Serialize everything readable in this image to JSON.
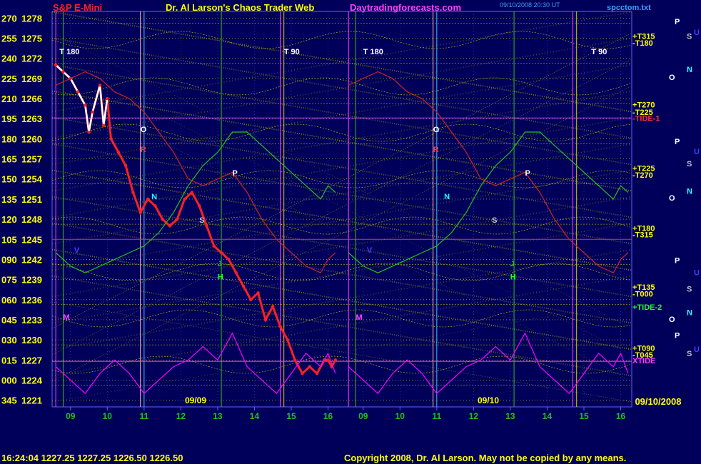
{
  "header": {
    "symbol": "S&P E-Mini",
    "title": "Dr. Al Larson's Chaos Trader Web",
    "site": "Daytradingforecasts.com",
    "stamp": "09/10/2008 20:30 UT",
    "file": "spcctom.txt"
  },
  "footer": {
    "quote": "16:24:04  1227.25  1227.25  1226.50  1226.50",
    "copyright": "Copyright 2008, Dr. Al Larson. May not be copied by any means."
  },
  "colors": {
    "background": "#00005a",
    "grid_yellow": "#d8d800",
    "price_white": "#ffffff",
    "price_red": "#ff2020",
    "green": "#20c020",
    "magenta": "#ff00ff",
    "accent_yellow": "#ffff00"
  },
  "chart_data": {
    "type": "line",
    "y_axis": {
      "range": [
        1220,
        1279
      ],
      "ticks": [
        {
          "price": "1278",
          "angle": "270"
        },
        {
          "price": "1275",
          "angle": "255"
        },
        {
          "price": "1272",
          "angle": "240"
        },
        {
          "price": "1269",
          "angle": "225"
        },
        {
          "price": "1266",
          "angle": "210"
        },
        {
          "price": "1263",
          "angle": "195"
        },
        {
          "price": "1260",
          "angle": "180"
        },
        {
          "price": "1257",
          "angle": "165"
        },
        {
          "price": "1254",
          "angle": "150"
        },
        {
          "price": "1251",
          "angle": "135"
        },
        {
          "price": "1248",
          "angle": "120"
        },
        {
          "price": "1245",
          "angle": "105"
        },
        {
          "price": "1242",
          "angle": "090"
        },
        {
          "price": "1239",
          "angle": "075"
        },
        {
          "price": "1236",
          "angle": "060"
        },
        {
          "price": "1233",
          "angle": "045"
        },
        {
          "price": "1230",
          "angle": "030"
        },
        {
          "price": "1227",
          "angle": "015"
        },
        {
          "price": "1224",
          "angle": "000"
        },
        {
          "price": "1221",
          "angle": "345"
        }
      ]
    },
    "x_axis": {
      "range": [
        8.5,
        16.3
      ],
      "days": [
        {
          "label": "09/09",
          "ticks": [
            "09",
            "10",
            "11",
            "12",
            "13",
            "14",
            "15",
            "16"
          ]
        },
        {
          "label": "09/10",
          "ticks": [
            "09",
            "10",
            "11",
            "12",
            "13",
            "14",
            "15",
            "16"
          ]
        }
      ],
      "date_label": "09/10/2008"
    },
    "overlays": {
      "top_markers": [
        "T 180",
        "T 90",
        "T 180",
        "T 90"
      ],
      "right_levels": [
        {
          "label": "+T315",
          "price": 1275.3
        },
        {
          "label": "-T180",
          "price": 1274.3
        },
        {
          "label": "+T270",
          "price": 1265.1
        },
        {
          "label": "-T225",
          "price": 1264.0
        },
        {
          "label": "-TIDE-1",
          "price": 1263.1
        },
        {
          "label": "+T225",
          "price": 1255.6
        },
        {
          "label": "-T270",
          "price": 1254.6
        },
        {
          "label": "+T180",
          "price": 1246.7
        },
        {
          "label": "-T315",
          "price": 1245.7
        },
        {
          "label": "+T135",
          "price": 1237.9
        },
        {
          "label": "-T000",
          "price": 1236.9
        },
        {
          "label": "+TIDE-2",
          "price": 1234.9
        },
        {
          "label": "+T090",
          "price": 1228.8
        },
        {
          "label": "-T045",
          "price": 1227.8
        },
        {
          "label": "XTIDE",
          "price": 1226.9
        }
      ],
      "planet_column": [
        {
          "glyph": "P",
          "price": 1277.5
        },
        {
          "glyph": "S",
          "price": 1275.3
        },
        {
          "glyph": "U",
          "price": 1275.9
        },
        {
          "glyph": "N",
          "price": 1270.4
        },
        {
          "glyph": "O",
          "price": 1269.2
        },
        {
          "glyph": "U",
          "price": 1258.1
        },
        {
          "glyph": "S",
          "price": 1256.3
        },
        {
          "glyph": "P",
          "price": 1259.6
        },
        {
          "glyph": "N",
          "price": 1252.2
        },
        {
          "glyph": "O",
          "price": 1251.2
        },
        {
          "glyph": "P",
          "price": 1241.9
        },
        {
          "glyph": "S",
          "price": 1237.6
        },
        {
          "glyph": "U",
          "price": 1240.1
        },
        {
          "glyph": "N",
          "price": 1234.1
        },
        {
          "glyph": "O",
          "price": 1233.1
        },
        {
          "glyph": "P",
          "price": 1230.7
        },
        {
          "glyph": "U",
          "price": 1228.6
        },
        {
          "glyph": "S",
          "price": 1228.0
        }
      ],
      "inline_marks": [
        "O",
        "P",
        "N",
        "S",
        "H",
        "R",
        "J",
        "M",
        "V"
      ]
    },
    "series": [
      {
        "kind": "price",
        "x": [
          8.6,
          8.8,
          9.0,
          9.2,
          9.4,
          9.5,
          9.6,
          9.8,
          9.9,
          10.0,
          10.1,
          10.3,
          10.5,
          10.7,
          10.9,
          11.1,
          11.3,
          11.5,
          11.7,
          11.9,
          12.1,
          12.3,
          12.5,
          12.7,
          12.9,
          13.1,
          13.3,
          13.5,
          13.7,
          13.9,
          14.1,
          14.3,
          14.5,
          14.7,
          14.9,
          15.1,
          15.3,
          15.5,
          15.7,
          15.9,
          16.0,
          16.1,
          16.2
        ],
        "y": [
          1271,
          1270,
          1269,
          1267,
          1265,
          1261,
          1264,
          1268,
          1262,
          1266,
          1260,
          1258,
          1256,
          1252,
          1249,
          1251,
          1250,
          1248,
          1247,
          1248,
          1251,
          1252,
          1250,
          1247,
          1244,
          1243,
          1242,
          1240,
          1238,
          1236,
          1237,
          1233,
          1235,
          1232,
          1230,
          1227,
          1225,
          1226,
          1225,
          1227,
          1227,
          1226,
          1227
        ]
      },
      {
        "kind": "green",
        "x": [
          8.6,
          9.0,
          9.4,
          9.8,
          10.2,
          10.6,
          11.0,
          11.4,
          11.8,
          12.2,
          12.6,
          13.0,
          13.4,
          13.8,
          14.2,
          14.6,
          15.0,
          15.4,
          15.8,
          16.0,
          16.2
        ],
        "y": [
          1243,
          1241,
          1240,
          1241,
          1242,
          1243,
          1244,
          1246,
          1249,
          1253,
          1256,
          1258,
          1261,
          1261,
          1259,
          1257,
          1255,
          1253,
          1251,
          1253,
          1252
        ]
      },
      {
        "kind": "red",
        "x": [
          8.6,
          9.0,
          9.4,
          9.8,
          10.2,
          10.6,
          11.0,
          11.4,
          11.8,
          12.2,
          12.6,
          13.0,
          13.4,
          13.8,
          14.2,
          14.6,
          15.0,
          15.4,
          15.8,
          16.0,
          16.2
        ],
        "y": [
          1268,
          1269,
          1270,
          1269,
          1267,
          1266,
          1264,
          1261,
          1258,
          1254,
          1253,
          1254,
          1255,
          1252,
          1248,
          1245,
          1243,
          1241,
          1240,
          1242,
          1243
        ]
      },
      {
        "kind": "magenta",
        "x": [
          8.6,
          9.0,
          9.4,
          9.8,
          10.2,
          10.6,
          11.0,
          11.4,
          11.8,
          12.2,
          12.6,
          13.0,
          13.4,
          13.8,
          14.2,
          14.6,
          15.0,
          15.4,
          15.8,
          16.0,
          16.2
        ],
        "y": [
          1226,
          1224,
          1222,
          1225,
          1227,
          1225,
          1222,
          1224,
          1226,
          1227,
          1229,
          1227,
          1231,
          1226,
          1224,
          1222,
          1225,
          1228,
          1226,
          1228,
          1225
        ]
      }
    ]
  }
}
